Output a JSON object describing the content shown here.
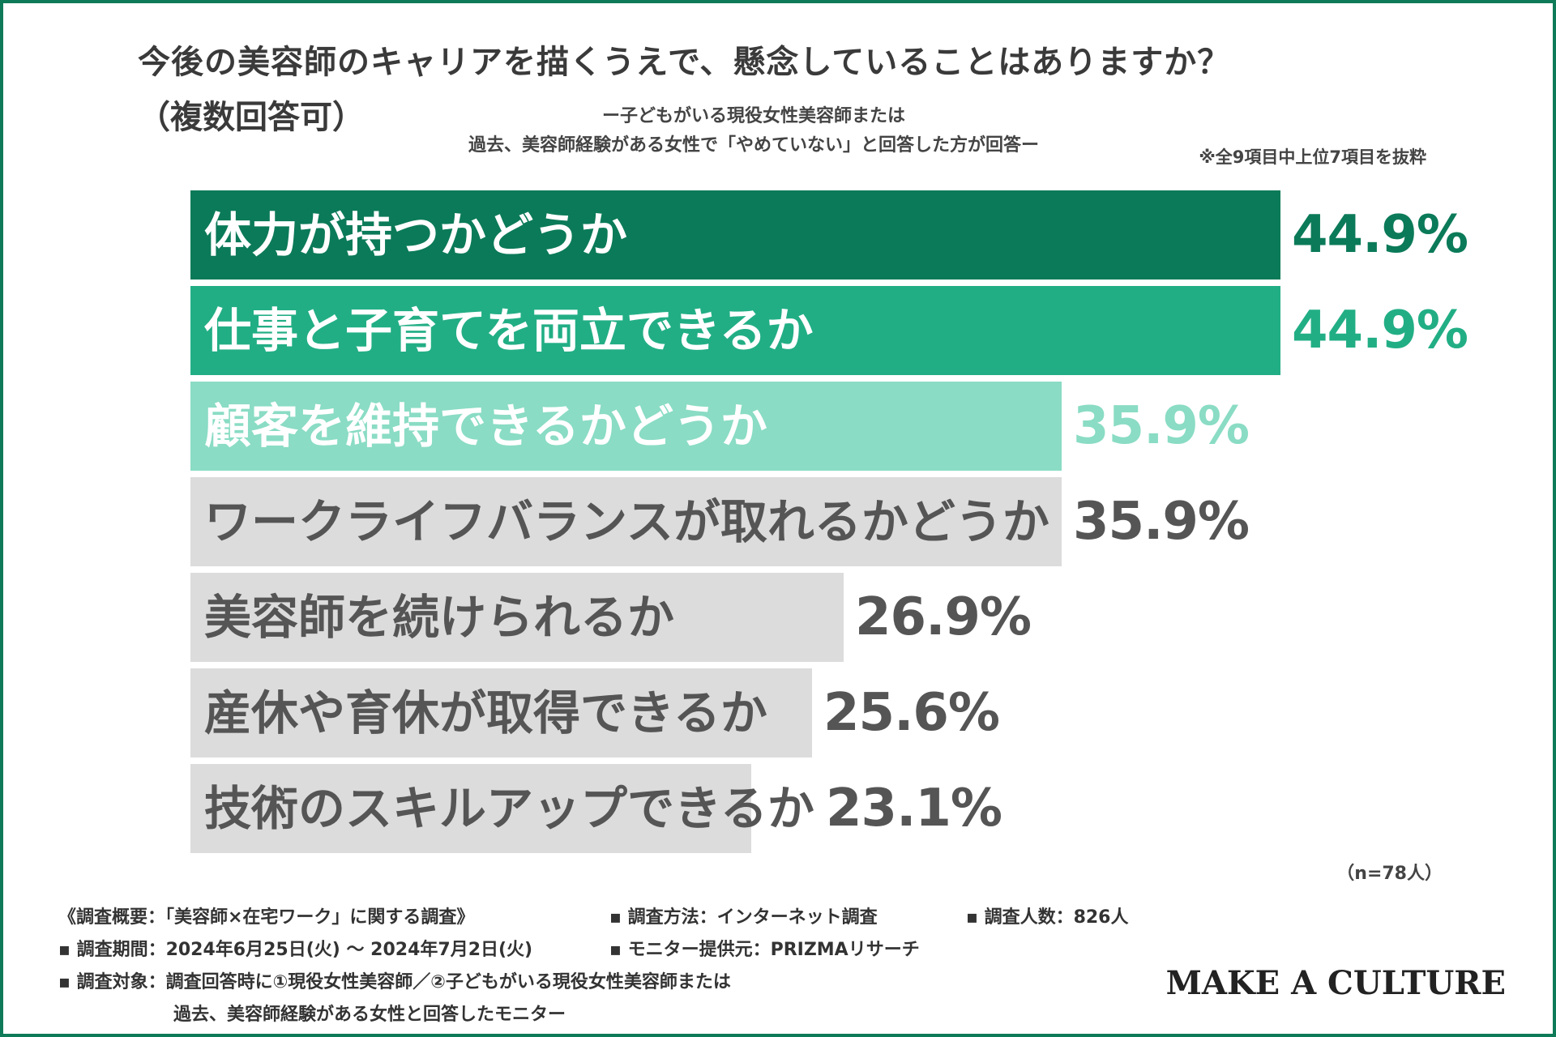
{
  "title": {
    "main": "今後の美容師のキャリアを描くうえで、懸念していることはありますか？",
    "sub": "（複数回答可）",
    "target_line1": "ー子どもがいる現役女性美容師または",
    "target_line2": "過去、美容師経験がある女性で「やめていない」と回答した方が回答ー",
    "excerpt_note": "※全9項目中上位7項目を抜粋"
  },
  "colors": {
    "frame": "#0f7a58",
    "bar_1": "#0b7a58",
    "bar_2": "#22ae85",
    "bar_3": "#8adcc4",
    "bar_other": "#dcdcdc",
    "label_dark": "#555555",
    "value_other": "#555555"
  },
  "chart_data": {
    "type": "bar",
    "orientation": "horizontal",
    "unit": "%",
    "xlim": [
      0,
      100
    ],
    "grid": false,
    "categories": [
      "体力が持つかどうか",
      "仕事と子育てを両立できるか",
      "顧客を維持できるかどうか",
      "ワークライフバランスが取れるかどうか",
      "美容師を続けられるか",
      "産休や育休が取得できるか",
      "技術のスキルアップできるか"
    ],
    "values": [
      44.9,
      44.9,
      35.9,
      35.9,
      26.9,
      25.6,
      23.1
    ],
    "value_labels": [
      "44.9%",
      "44.9%",
      "35.9%",
      "35.9%",
      "26.9%",
      "25.6%",
      "23.1%"
    ]
  },
  "sample_size": "（n=78人）",
  "footer": {
    "overview": "《調査概要：「美容師×在宅ワーク」に関する調査》",
    "method": "▪ 調査方法：インターネット調査",
    "count": "▪ 調査人数：826人",
    "period": "▪ 調査期間：2024年6月25日(火) 〜 2024年7月2日(火)",
    "provider": "▪ モニター提供元：PRIZMAリサーチ",
    "target_line1": "▪ 調査対象：調査回答時に①現役女性美容師／②子どもがいる現役女性美容師または",
    "target_line2": "過去、美容師経験がある女性と回答したモニター"
  },
  "brand": "MAKE A CULTURE"
}
